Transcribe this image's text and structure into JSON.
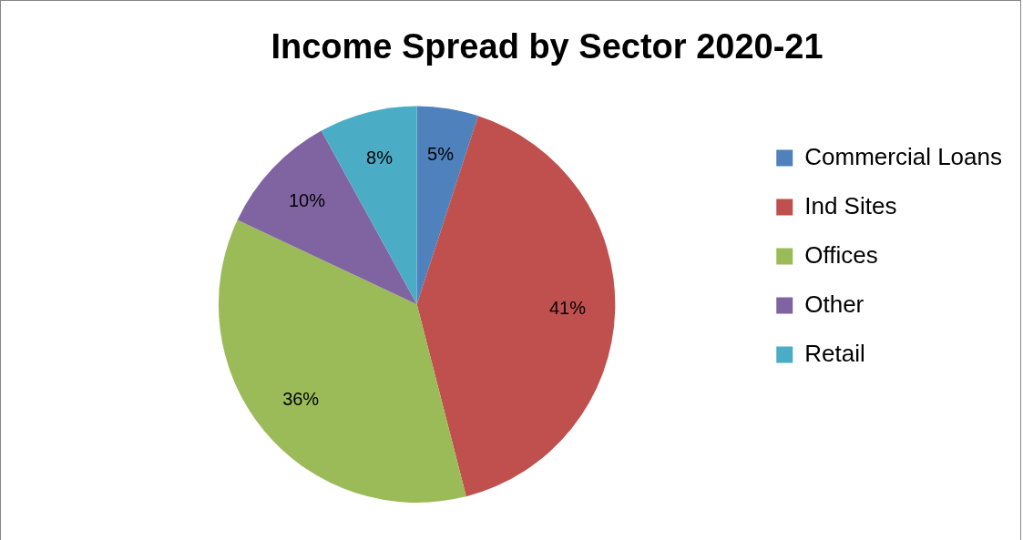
{
  "chart_data": {
    "type": "pie",
    "title": "Income Spread by Sector 2020-21",
    "categories": [
      "Commercial Loans",
      "Ind Sites",
      "Offices",
      "Other",
      "Retail"
    ],
    "values": [
      5,
      41,
      36,
      10,
      8
    ],
    "value_labels": [
      "5%",
      "41%",
      "36%",
      "10%",
      "8%"
    ],
    "colors": [
      "#4f81bd",
      "#c0504d",
      "#9bbb59",
      "#8064a2",
      "#4bacc6"
    ],
    "legend": "right"
  }
}
